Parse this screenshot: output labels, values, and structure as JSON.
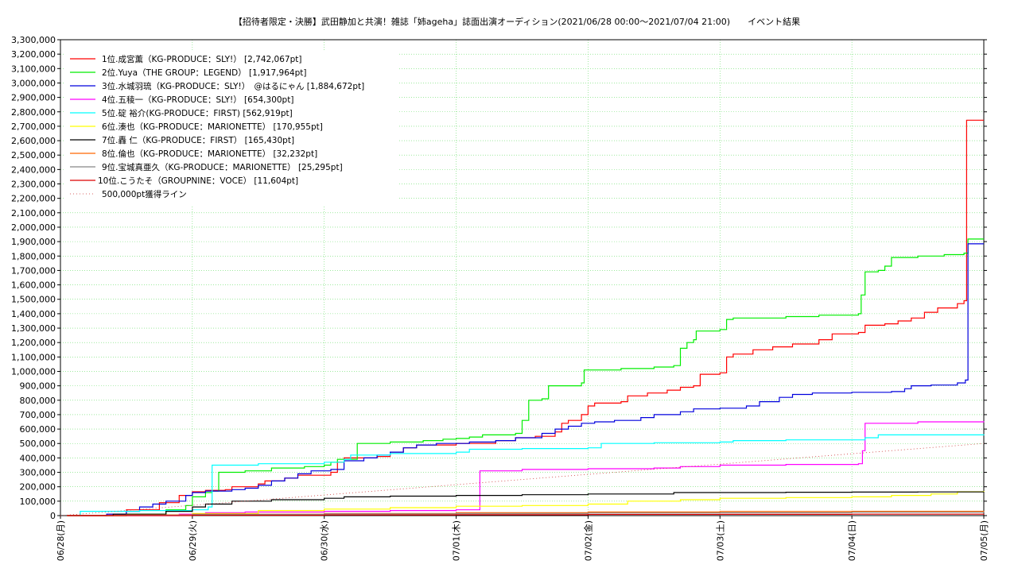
{
  "chart_data": {
    "type": "line",
    "title": "【招待者限定・決勝】武田静加と共演！雑誌「姉ageha」誌面出演オーディション(2021/06/28 00:00〜2021/07/04 21:00)　　イベント結果",
    "xlabel": "",
    "ylabel": "",
    "x_ticks": [
      "06/28(月)",
      "06/29(火)",
      "06/30(水)",
      "07/01(木)",
      "07/02(金)",
      "07/03(土)",
      "07/04(日)",
      "07/05(月)"
    ],
    "xlim": [
      0,
      7
    ],
    "ylim": [
      0,
      3300000
    ],
    "y_tick_step": 100000,
    "grid": true,
    "legend_position": "top-left",
    "x_unit": "days since 06/28 00:00",
    "series": [
      {
        "name": "1位.成宮薫（KG-PRODUCE：SLY!） [2,742,067pt]",
        "color": "#ff0000",
        "points": [
          [
            0.05,
            0
          ],
          [
            0.35,
            10000
          ],
          [
            0.5,
            40000
          ],
          [
            0.75,
            90000
          ],
          [
            0.9,
            140000
          ],
          [
            1.0,
            165000
          ],
          [
            1.1,
            175000
          ],
          [
            1.25,
            180000
          ],
          [
            1.3,
            200000
          ],
          [
            1.5,
            220000
          ],
          [
            1.55,
            240000
          ],
          [
            1.7,
            260000
          ],
          [
            1.8,
            280000
          ],
          [
            2.05,
            300000
          ],
          [
            2.1,
            370000
          ],
          [
            2.15,
            400000
          ],
          [
            2.4,
            410000
          ],
          [
            2.5,
            440000
          ],
          [
            2.6,
            470000
          ],
          [
            2.7,
            490000
          ],
          [
            3.0,
            500000
          ],
          [
            3.3,
            520000
          ],
          [
            3.45,
            540000
          ],
          [
            3.6,
            550000
          ],
          [
            3.75,
            580000
          ],
          [
            3.8,
            640000
          ],
          [
            3.85,
            660000
          ],
          [
            3.95,
            700000
          ],
          [
            4.0,
            760000
          ],
          [
            4.05,
            780000
          ],
          [
            4.25,
            790000
          ],
          [
            4.3,
            830000
          ],
          [
            4.45,
            850000
          ],
          [
            4.6,
            870000
          ],
          [
            4.7,
            890000
          ],
          [
            4.8,
            900000
          ],
          [
            4.85,
            980000
          ],
          [
            5.0,
            990000
          ],
          [
            5.05,
            1100000
          ],
          [
            5.1,
            1120000
          ],
          [
            5.25,
            1150000
          ],
          [
            5.4,
            1170000
          ],
          [
            5.55,
            1190000
          ],
          [
            5.75,
            1220000
          ],
          [
            5.85,
            1260000
          ],
          [
            6.05,
            1270000
          ],
          [
            6.1,
            1320000
          ],
          [
            6.25,
            1330000
          ],
          [
            6.35,
            1350000
          ],
          [
            6.45,
            1370000
          ],
          [
            6.55,
            1410000
          ],
          [
            6.65,
            1440000
          ],
          [
            6.8,
            1470000
          ],
          [
            6.85,
            1490000
          ],
          [
            6.87,
            2742067
          ],
          [
            7.0,
            2742067
          ]
        ]
      },
      {
        "name": "2位.Yuya（THE GROUP：LEGEND） [1,917,964pt]",
        "color": "#00ee00",
        "points": [
          [
            0.05,
            0
          ],
          [
            0.5,
            10000
          ],
          [
            0.8,
            40000
          ],
          [
            0.95,
            70000
          ],
          [
            1.0,
            130000
          ],
          [
            1.1,
            160000
          ],
          [
            1.15,
            170000
          ],
          [
            1.2,
            300000
          ],
          [
            1.4,
            310000
          ],
          [
            1.6,
            330000
          ],
          [
            1.85,
            340000
          ],
          [
            2.0,
            350000
          ],
          [
            2.05,
            370000
          ],
          [
            2.1,
            390000
          ],
          [
            2.25,
            500000
          ],
          [
            2.5,
            510000
          ],
          [
            2.75,
            520000
          ],
          [
            2.9,
            530000
          ],
          [
            3.0,
            535000
          ],
          [
            3.1,
            545000
          ],
          [
            3.2,
            560000
          ],
          [
            3.45,
            570000
          ],
          [
            3.5,
            660000
          ],
          [
            3.55,
            800000
          ],
          [
            3.65,
            810000
          ],
          [
            3.7,
            900000
          ],
          [
            3.95,
            920000
          ],
          [
            3.97,
            1010000
          ],
          [
            4.25,
            1020000
          ],
          [
            4.5,
            1030000
          ],
          [
            4.65,
            1040000
          ],
          [
            4.7,
            1160000
          ],
          [
            4.75,
            1200000
          ],
          [
            4.8,
            1220000
          ],
          [
            4.82,
            1280000
          ],
          [
            5.0,
            1290000
          ],
          [
            5.05,
            1360000
          ],
          [
            5.1,
            1370000
          ],
          [
            5.5,
            1380000
          ],
          [
            5.75,
            1390000
          ],
          [
            6.05,
            1400000
          ],
          [
            6.07,
            1530000
          ],
          [
            6.1,
            1690000
          ],
          [
            6.2,
            1700000
          ],
          [
            6.25,
            1730000
          ],
          [
            6.3,
            1790000
          ],
          [
            6.5,
            1800000
          ],
          [
            6.7,
            1810000
          ],
          [
            6.85,
            1820000
          ],
          [
            6.88,
            1917964
          ],
          [
            7.0,
            1917964
          ]
        ]
      },
      {
        "name": "3位.水城羽琉（KG-PRODUCE：SLY!）　@はるにゃん [1,884,672pt]",
        "color": "#0000dd",
        "points": [
          [
            0.05,
            0
          ],
          [
            0.35,
            10000
          ],
          [
            0.5,
            30000
          ],
          [
            0.6,
            60000
          ],
          [
            0.7,
            80000
          ],
          [
            0.8,
            100000
          ],
          [
            0.95,
            140000
          ],
          [
            1.0,
            160000
          ],
          [
            1.1,
            170000
          ],
          [
            1.3,
            180000
          ],
          [
            1.4,
            190000
          ],
          [
            1.5,
            210000
          ],
          [
            1.6,
            240000
          ],
          [
            1.7,
            260000
          ],
          [
            1.8,
            290000
          ],
          [
            1.9,
            310000
          ],
          [
            2.05,
            320000
          ],
          [
            2.15,
            380000
          ],
          [
            2.3,
            400000
          ],
          [
            2.4,
            420000
          ],
          [
            2.5,
            440000
          ],
          [
            2.6,
            470000
          ],
          [
            2.7,
            490000
          ],
          [
            2.85,
            500000
          ],
          [
            3.1,
            510000
          ],
          [
            3.3,
            520000
          ],
          [
            3.45,
            540000
          ],
          [
            3.65,
            570000
          ],
          [
            3.75,
            600000
          ],
          [
            3.85,
            620000
          ],
          [
            3.95,
            640000
          ],
          [
            4.05,
            650000
          ],
          [
            4.2,
            660000
          ],
          [
            4.4,
            680000
          ],
          [
            4.5,
            700000
          ],
          [
            4.7,
            720000
          ],
          [
            4.8,
            740000
          ],
          [
            5.0,
            745000
          ],
          [
            5.2,
            760000
          ],
          [
            5.3,
            790000
          ],
          [
            5.45,
            820000
          ],
          [
            5.55,
            840000
          ],
          [
            5.7,
            850000
          ],
          [
            6.0,
            855000
          ],
          [
            6.3,
            860000
          ],
          [
            6.4,
            880000
          ],
          [
            6.45,
            900000
          ],
          [
            6.6,
            905000
          ],
          [
            6.8,
            920000
          ],
          [
            6.86,
            940000
          ],
          [
            6.88,
            1884672
          ],
          [
            7.0,
            1884672
          ]
        ]
      },
      {
        "name": "4位.五稜一（KG-PRODUCE：SLY!） [654,300pt]",
        "color": "#ff00ff",
        "points": [
          [
            0.05,
            0
          ],
          [
            0.9,
            10000
          ],
          [
            1.1,
            20000
          ],
          [
            1.4,
            25000
          ],
          [
            2.0,
            30000
          ],
          [
            2.5,
            35000
          ],
          [
            3.0,
            40000
          ],
          [
            3.15,
            40000
          ],
          [
            3.18,
            310000
          ],
          [
            3.5,
            320000
          ],
          [
            4.0,
            325000
          ],
          [
            4.5,
            330000
          ],
          [
            4.7,
            340000
          ],
          [
            5.0,
            350000
          ],
          [
            5.5,
            355000
          ],
          [
            6.05,
            360000
          ],
          [
            6.08,
            450000
          ],
          [
            6.1,
            640000
          ],
          [
            6.5,
            650000
          ],
          [
            7.0,
            654300
          ]
        ]
      },
      {
        "name": "5位.碇 裕介(KG-PRODUCE：FIRST) [562,919pt]",
        "color": "#00ffff",
        "points": [
          [
            0.05,
            0
          ],
          [
            0.15,
            30000
          ],
          [
            0.6,
            35000
          ],
          [
            1.0,
            40000
          ],
          [
            1.12,
            60000
          ],
          [
            1.15,
            350000
          ],
          [
            1.5,
            360000
          ],
          [
            2.0,
            370000
          ],
          [
            2.15,
            390000
          ],
          [
            2.2,
            420000
          ],
          [
            2.5,
            430000
          ],
          [
            3.0,
            440000
          ],
          [
            3.1,
            460000
          ],
          [
            3.5,
            465000
          ],
          [
            4.0,
            470000
          ],
          [
            4.1,
            500000
          ],
          [
            4.5,
            505000
          ],
          [
            5.0,
            510000
          ],
          [
            5.1,
            520000
          ],
          [
            5.5,
            525000
          ],
          [
            6.0,
            525000
          ],
          [
            6.1,
            540000
          ],
          [
            6.2,
            560000
          ],
          [
            7.0,
            562919
          ]
        ]
      },
      {
        "name": "6位.湊也（KG-PRODUCE：MARIONETTE） [170,955pt]",
        "color": "#ffff00",
        "points": [
          [
            0.05,
            0
          ],
          [
            0.5,
            5000
          ],
          [
            1.0,
            15000
          ],
          [
            1.5,
            35000
          ],
          [
            2.0,
            45000
          ],
          [
            2.5,
            55000
          ],
          [
            3.0,
            65000
          ],
          [
            3.5,
            70000
          ],
          [
            4.0,
            80000
          ],
          [
            4.3,
            100000
          ],
          [
            4.7,
            110000
          ],
          [
            5.0,
            120000
          ],
          [
            5.5,
            125000
          ],
          [
            6.0,
            130000
          ],
          [
            6.3,
            140000
          ],
          [
            6.6,
            150000
          ],
          [
            6.8,
            165000
          ],
          [
            7.0,
            170955
          ]
        ]
      },
      {
        "name": "7位.轟 仁（KG-PRODUCE：FIRST） [165,430pt]",
        "color": "#000000",
        "points": [
          [
            0.05,
            0
          ],
          [
            0.4,
            10000
          ],
          [
            0.8,
            30000
          ],
          [
            1.0,
            60000
          ],
          [
            1.1,
            80000
          ],
          [
            1.3,
            100000
          ],
          [
            1.6,
            110000
          ],
          [
            2.0,
            120000
          ],
          [
            2.15,
            130000
          ],
          [
            2.5,
            135000
          ],
          [
            3.0,
            140000
          ],
          [
            3.5,
            145000
          ],
          [
            4.0,
            150000
          ],
          [
            4.5,
            150000
          ],
          [
            4.65,
            160000
          ],
          [
            5.0,
            160000
          ],
          [
            5.5,
            162000
          ],
          [
            6.0,
            163000
          ],
          [
            6.5,
            164000
          ],
          [
            7.0,
            165430
          ]
        ]
      },
      {
        "name": "8位.倫也（KG-PRODUCE：MARIONETTE） [32,232pt]",
        "color": "#ff6600",
        "points": [
          [
            0.05,
            0
          ],
          [
            0.5,
            5000
          ],
          [
            1.0,
            10000
          ],
          [
            2.0,
            15000
          ],
          [
            3.0,
            20000
          ],
          [
            4.0,
            25000
          ],
          [
            5.0,
            28000
          ],
          [
            6.0,
            30000
          ],
          [
            7.0,
            32232
          ]
        ]
      },
      {
        "name": "9位.宝城真亜久（KG-PRODUCE：MARIONETTE） [25,295pt]",
        "color": "#888888",
        "points": [
          [
            0.05,
            0
          ],
          [
            0.5,
            3000
          ],
          [
            1.0,
            8000
          ],
          [
            2.0,
            12000
          ],
          [
            3.0,
            15000
          ],
          [
            4.0,
            18000
          ],
          [
            5.0,
            20000
          ],
          [
            6.0,
            23000
          ],
          [
            7.0,
            25295
          ]
        ]
      },
      {
        "name": "10位.こうたそ（GROUPNINE：VOCE） [11,604pt]",
        "color": "#dd0000",
        "points": [
          [
            0.05,
            0
          ],
          [
            1.0,
            3000
          ],
          [
            2.0,
            5000
          ],
          [
            3.0,
            6000
          ],
          [
            4.0,
            8000
          ],
          [
            5.0,
            9000
          ],
          [
            6.0,
            10000
          ],
          [
            7.0,
            11604
          ]
        ]
      },
      {
        "name": "500,000pt獲得ライン",
        "color": "#cc3333",
        "dashed": true,
        "points": [
          [
            0,
            0
          ],
          [
            7,
            500000
          ]
        ]
      }
    ],
    "reference_line": {
      "value": 500000,
      "color": "#cc6666"
    }
  }
}
